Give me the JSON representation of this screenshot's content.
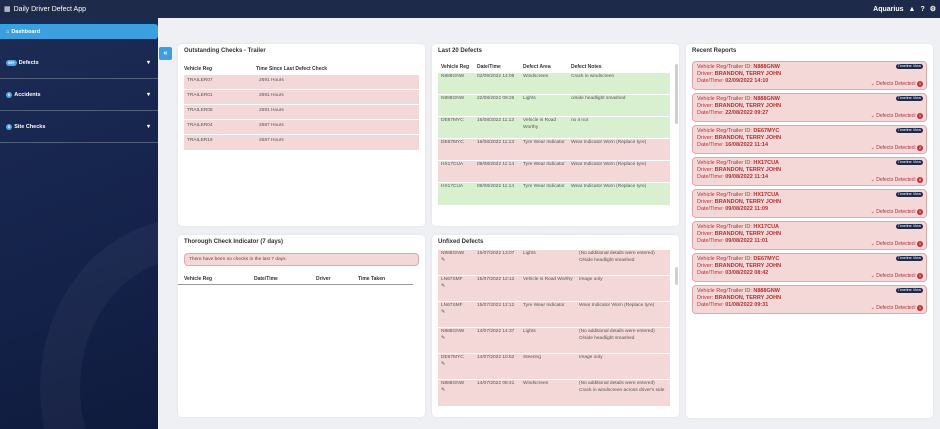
{
  "app": {
    "title": "Daily Driver Defect App",
    "brand": "Aquarius"
  },
  "sidebar": {
    "items": [
      {
        "label": "Dashboard",
        "badge": ""
      },
      {
        "label": "Defects",
        "badge": "99+"
      },
      {
        "label": "Accidents",
        "badge": "0"
      },
      {
        "label": "Site Checks",
        "badge": "0"
      }
    ]
  },
  "outstanding": {
    "title": "Outstanding Checks - Trailer",
    "headers": [
      "Vehicle Reg",
      "Time Since Last Defect Check"
    ],
    "rows": [
      [
        "TRAILER07",
        "2691 Hours"
      ],
      [
        "TRAILER01",
        "2691 Hours"
      ],
      [
        "TRAILER06",
        "2691 Hours"
      ],
      [
        "TRAILER04",
        "2687 Hours"
      ],
      [
        "TRAILER19",
        "2687 Hours"
      ]
    ]
  },
  "thorough": {
    "title": "Thorough Check Indicator (7 days)",
    "message": "There have been no checks in the last 7 days.",
    "headers": [
      "Vehicle Reg",
      "Date/Time",
      "Driver",
      "Time Taken"
    ]
  },
  "last20": {
    "title": "Last 20 Defects",
    "headers": [
      "Vehicle Reg",
      "Date/Time",
      "Defect Area",
      "Defect Notes"
    ],
    "rows": [
      {
        "reg": "N888GNW",
        "dt": "02/09/2022 14:09",
        "area": "Windscreen",
        "notes": "Crack in windscreen",
        "status": "green"
      },
      {
        "reg": "N888GNW",
        "dt": "22/08/2022 09:26",
        "area": "Lights",
        "notes": "o/side headlight smashed",
        "status": "green"
      },
      {
        "reg": "DE67MYC",
        "dt": "16/08/2022 11:13",
        "area": "Vehicle is Road Worthy",
        "notes": "no it not",
        "status": "green"
      },
      {
        "reg": "DE67MYC",
        "dt": "16/08/2022 11:13",
        "area": "Tyre Wear Indicator",
        "notes": "Wear Indicator Worn (Replace tyre)",
        "status": "red"
      },
      {
        "reg": "HX17CUA",
        "dt": "09/08/2022 11:14",
        "area": "Tyre Wear Indicator",
        "notes": "Wear Indicator Worn (Replace tyre)",
        "status": "red"
      },
      {
        "reg": "HX17CUA",
        "dt": "09/08/2022 11:14",
        "area": "Tyre Wear Indicator",
        "notes": "Wear Indicator Worn (Replace tyre)",
        "status": "green"
      }
    ]
  },
  "unfixed": {
    "title": "Unfixed Defects",
    "rows": [
      {
        "reg": "N888GNW",
        "dt": "15/07/2022 13:07",
        "area": "Lights",
        "notes": "(No additional details were entered) O/side headlight smashed"
      },
      {
        "reg": "LN67SMF",
        "dt": "15/07/2022 12:12",
        "area": "Vehicle is Road Worthy",
        "notes": "Image only"
      },
      {
        "reg": "LN67SMF",
        "dt": "15/07/2022 12:12",
        "area": "Tyre Wear Indicator",
        "notes": "Wear Indicator Worn (Replace tyre)"
      },
      {
        "reg": "N888GNW",
        "dt": "14/07/2022 14:37",
        "area": "Lights",
        "notes": "(No additional details were entered) O/side headlight smashed"
      },
      {
        "reg": "DE67MYC",
        "dt": "14/07/2022 10:52",
        "area": "Steering",
        "notes": "Image only"
      },
      {
        "reg": "N888GNW",
        "dt": "14/07/2022 08:41",
        "area": "Windscreen",
        "notes": "(No additional details were entered) Crack in windscreen across driver's side"
      }
    ]
  },
  "recent": {
    "title": "Recent Reports",
    "timeline_label": "Timeline View",
    "defects_label": "Defects Detected:",
    "reg_label": "Vehicle Reg/Trailer ID:",
    "driver_label": "Driver:",
    "dt_label": "Date/Time:",
    "items": [
      {
        "reg": "N888GNW",
        "driver": "BRANDON, TERRY JOHN",
        "dt": "02/09/2022 14:10",
        "count": "1"
      },
      {
        "reg": "N888GNW",
        "driver": "BRANDON, TERRY JOHN",
        "dt": "22/08/2022 09:27",
        "count": "1"
      },
      {
        "reg": "DE67MYC",
        "driver": "BRANDON, TERRY JOHN",
        "dt": "16/08/2022 11:14",
        "count": "2"
      },
      {
        "reg": "HX17CUA",
        "driver": "BRANDON, TERRY JOHN",
        "dt": "09/08/2022 11:14",
        "count": "8"
      },
      {
        "reg": "HX17CUA",
        "driver": "BRANDON, TERRY JOHN",
        "dt": "09/08/2022 11:09",
        "count": "1"
      },
      {
        "reg": "HX17CUA",
        "driver": "BRANDON, TERRY JOHN",
        "dt": "09/08/2022 11:01",
        "count": "1"
      },
      {
        "reg": "DE67MYC",
        "driver": "BRANDON, TERRY JOHN",
        "dt": "03/08/2022 08:42",
        "count": "1"
      },
      {
        "reg": "N888GNW",
        "driver": "BRANDON, TERRY JOHN",
        "dt": "01/08/2022 09:31",
        "count": "1"
      }
    ]
  }
}
